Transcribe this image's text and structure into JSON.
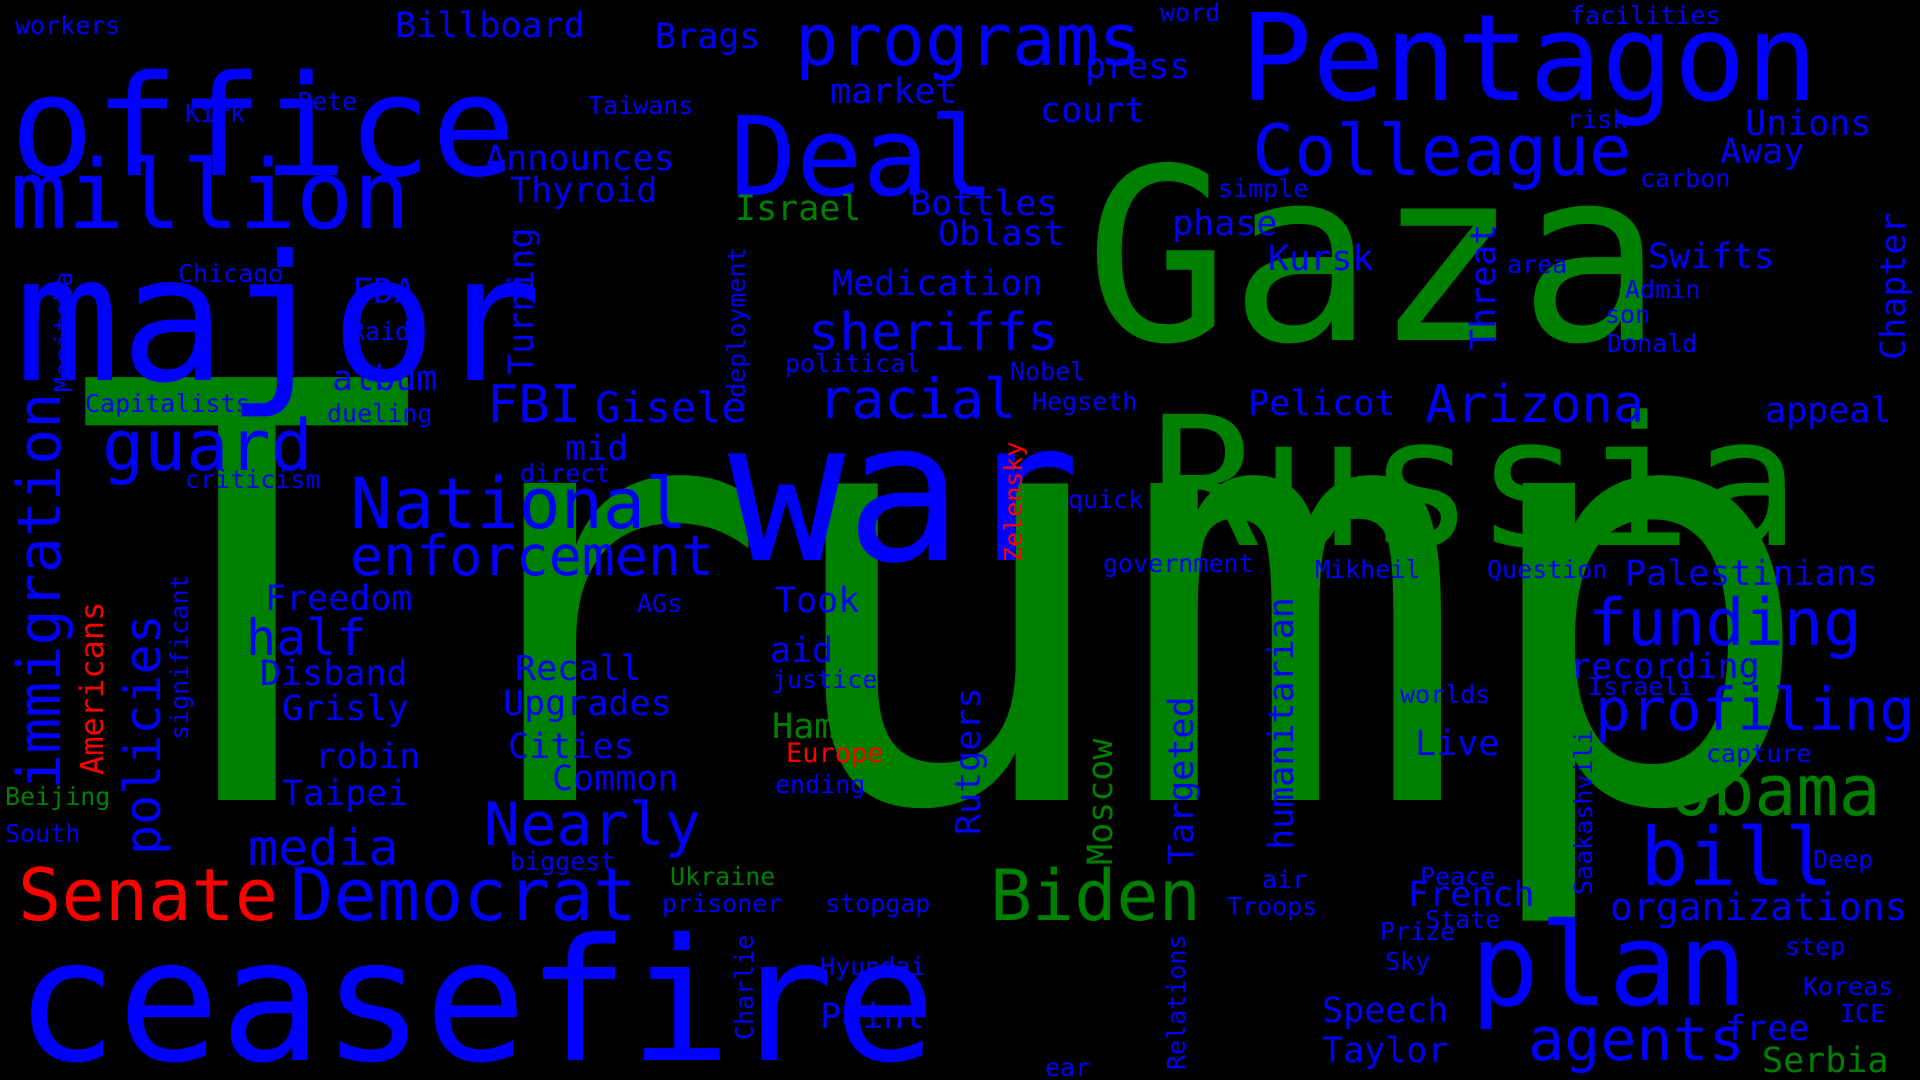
{
  "colors": {
    "background": "#000000",
    "blue": "#0000ff",
    "green": "#008000",
    "red": "#ff0000"
  },
  "words": [
    {
      "text": "Trump",
      "color": "green"
    },
    {
      "text": "Gaza",
      "color": "green"
    },
    {
      "text": "war",
      "color": "blue"
    },
    {
      "text": "Russia",
      "color": "green"
    },
    {
      "text": "major",
      "color": "blue"
    },
    {
      "text": "ceasefire",
      "color": "blue"
    },
    {
      "text": "office",
      "color": "blue"
    },
    {
      "text": "Pentagon",
      "color": "blue"
    },
    {
      "text": "Deal",
      "color": "blue"
    },
    {
      "text": "million",
      "color": "blue"
    },
    {
      "text": "programs",
      "color": "blue"
    },
    {
      "text": "Colleague",
      "color": "blue"
    },
    {
      "text": "plan",
      "color": "blue"
    },
    {
      "text": "Obama",
      "color": "green"
    },
    {
      "text": "Biden",
      "color": "green"
    },
    {
      "text": "Senate",
      "color": "red"
    },
    {
      "text": "Democrat",
      "color": "blue"
    },
    {
      "text": "National",
      "color": "blue"
    },
    {
      "text": "guard",
      "color": "blue"
    },
    {
      "text": "bill",
      "color": "blue"
    },
    {
      "text": "funding",
      "color": "blue"
    },
    {
      "text": "profiling",
      "color": "blue"
    },
    {
      "text": "immigration",
      "color": "blue"
    },
    {
      "text": "enforcement",
      "color": "blue"
    },
    {
      "text": "sheriffs",
      "color": "blue"
    },
    {
      "text": "racial",
      "color": "blue"
    },
    {
      "text": "Arizona",
      "color": "blue"
    },
    {
      "text": "agents",
      "color": "blue"
    },
    {
      "text": "Nearly",
      "color": "blue"
    },
    {
      "text": "policies",
      "color": "blue"
    },
    {
      "text": "media",
      "color": "blue"
    },
    {
      "text": "FBI",
      "color": "blue"
    },
    {
      "text": "Gisele",
      "color": "blue"
    },
    {
      "text": "half",
      "color": "blue"
    },
    {
      "text": "organizations",
      "color": "blue"
    },
    {
      "text": "Palestinians",
      "color": "blue"
    },
    {
      "text": "recording",
      "color": "blue"
    },
    {
      "text": "appeal",
      "color": "blue"
    },
    {
      "text": "Pelicot",
      "color": "blue"
    },
    {
      "text": "Swifts",
      "color": "blue"
    },
    {
      "text": "Unions",
      "color": "blue"
    },
    {
      "text": "Away",
      "color": "blue"
    },
    {
      "text": "Chapter",
      "color": "blue"
    },
    {
      "text": "Threat",
      "color": "blue"
    },
    {
      "text": "Kursk",
      "color": "blue"
    },
    {
      "text": "phase",
      "color": "blue"
    },
    {
      "text": "Oblast",
      "color": "blue"
    },
    {
      "text": "Bottles",
      "color": "blue"
    },
    {
      "text": "Medication",
      "color": "blue"
    },
    {
      "text": "Israel",
      "color": "green"
    },
    {
      "text": "Thyroid",
      "color": "blue"
    },
    {
      "text": "Announces",
      "color": "blue"
    },
    {
      "text": "market",
      "color": "blue"
    },
    {
      "text": "court",
      "color": "blue"
    },
    {
      "text": "press",
      "color": "blue"
    },
    {
      "text": "Brags",
      "color": "blue"
    },
    {
      "text": "Billboard",
      "color": "blue"
    },
    {
      "text": "Turning",
      "color": "blue"
    },
    {
      "text": "FDA",
      "color": "blue"
    },
    {
      "text": "album",
      "color": "blue"
    },
    {
      "text": "mid",
      "color": "blue"
    },
    {
      "text": "Freedom",
      "color": "blue"
    },
    {
      "text": "Disband",
      "color": "blue"
    },
    {
      "text": "Grisly",
      "color": "blue"
    },
    {
      "text": "robin",
      "color": "blue"
    },
    {
      "text": "Taipei",
      "color": "blue"
    },
    {
      "text": "Took",
      "color": "blue"
    },
    {
      "text": "aid",
      "color": "blue"
    },
    {
      "text": "Recall",
      "color": "blue"
    },
    {
      "text": "Upgrades",
      "color": "blue"
    },
    {
      "text": "Cities",
      "color": "blue"
    },
    {
      "text": "Common",
      "color": "blue"
    },
    {
      "text": "Hamas",
      "color": "green"
    },
    {
      "text": "Europe",
      "color": "red"
    },
    {
      "text": "Rutgers",
      "color": "blue"
    },
    {
      "text": "Moscow",
      "color": "green"
    },
    {
      "text": "Targeted",
      "color": "blue"
    },
    {
      "text": "humanitarian",
      "color": "blue"
    },
    {
      "text": "Live",
      "color": "blue"
    },
    {
      "text": "Point",
      "color": "blue"
    },
    {
      "text": "Speech",
      "color": "blue"
    },
    {
      "text": "Taylor",
      "color": "blue"
    },
    {
      "text": "French",
      "color": "blue"
    },
    {
      "text": "free",
      "color": "blue"
    },
    {
      "text": "Serbia",
      "color": "green"
    },
    {
      "text": "Americans",
      "color": "red"
    },
    {
      "text": "Zelensky",
      "color": "red"
    },
    {
      "text": "Beijing",
      "color": "green"
    },
    {
      "text": "Ukraine",
      "color": "green"
    },
    {
      "text": "workers",
      "color": "blue"
    },
    {
      "text": "word",
      "color": "blue"
    },
    {
      "text": "facilities",
      "color": "blue"
    },
    {
      "text": "Kirk",
      "color": "blue"
    },
    {
      "text": "Pete",
      "color": "blue"
    },
    {
      "text": "Taiwans",
      "color": "blue"
    },
    {
      "text": "risk",
      "color": "blue"
    },
    {
      "text": "carbon",
      "color": "blue"
    },
    {
      "text": "simple",
      "color": "blue"
    },
    {
      "text": "area",
      "color": "blue"
    },
    {
      "text": "Admin",
      "color": "blue"
    },
    {
      "text": "son",
      "color": "blue"
    },
    {
      "text": "Donald",
      "color": "blue"
    },
    {
      "text": "Chicago",
      "color": "blue"
    },
    {
      "text": "Manitoba",
      "color": "blue"
    },
    {
      "text": "Raid",
      "color": "blue"
    },
    {
      "text": "Capitalists",
      "color": "blue"
    },
    {
      "text": "dueling",
      "color": "blue"
    },
    {
      "text": "criticism",
      "color": "blue"
    },
    {
      "text": "direct",
      "color": "blue"
    },
    {
      "text": "political",
      "color": "blue"
    },
    {
      "text": "deployment",
      "color": "blue"
    },
    {
      "text": "Nobel",
      "color": "blue"
    },
    {
      "text": "Hegseth",
      "color": "blue"
    },
    {
      "text": "quick",
      "color": "blue"
    },
    {
      "text": "government",
      "color": "blue"
    },
    {
      "text": "Mikheil",
      "color": "blue"
    },
    {
      "text": "Question",
      "color": "blue"
    },
    {
      "text": "AGs",
      "color": "blue"
    },
    {
      "text": "justice",
      "color": "blue"
    },
    {
      "text": "ending",
      "color": "blue"
    },
    {
      "text": "significant",
      "color": "blue"
    },
    {
      "text": "South",
      "color": "blue"
    },
    {
      "text": "biggest",
      "color": "blue"
    },
    {
      "text": "prisoner",
      "color": "blue"
    },
    {
      "text": "stopgap",
      "color": "blue"
    },
    {
      "text": "Hyundai",
      "color": "blue"
    },
    {
      "text": "Charlie",
      "color": "blue"
    },
    {
      "text": "ear",
      "color": "blue"
    },
    {
      "text": "Relations",
      "color": "blue"
    },
    {
      "text": "air",
      "color": "blue"
    },
    {
      "text": "Troops",
      "color": "blue"
    },
    {
      "text": "Peace",
      "color": "blue"
    },
    {
      "text": "State",
      "color": "blue"
    },
    {
      "text": "Prize",
      "color": "blue"
    },
    {
      "text": "Sky",
      "color": "blue"
    },
    {
      "text": "Saakashvili",
      "color": "blue"
    },
    {
      "text": "Israeli",
      "color": "blue"
    },
    {
      "text": "worlds",
      "color": "blue"
    },
    {
      "text": "capture",
      "color": "blue"
    },
    {
      "text": "Deep",
      "color": "blue"
    },
    {
      "text": "step",
      "color": "blue"
    },
    {
      "text": "Koreas",
      "color": "blue"
    },
    {
      "text": "ICE",
      "color": "blue"
    }
  ]
}
